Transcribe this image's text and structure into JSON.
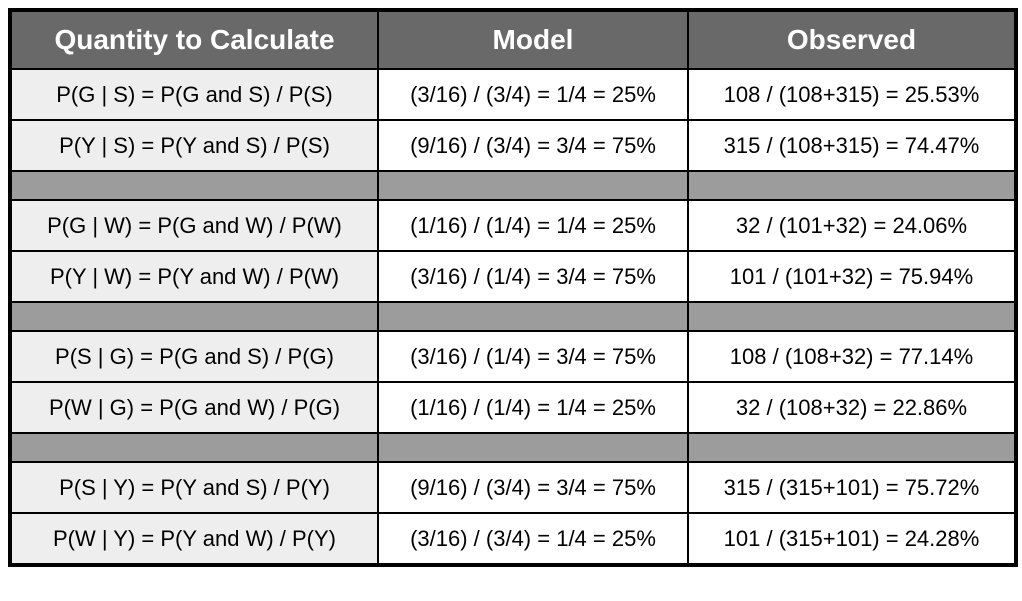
{
  "table": {
    "headers": [
      "Quantity to Calculate",
      "Model",
      "Observed"
    ],
    "colors": {
      "header_bg": "#696969",
      "header_text": "#ffffff",
      "separator_bg": "#9c9c9c",
      "quantity_cell_bg": "#eeeeee",
      "value_cell_bg": "#ffffff",
      "border": "#000000",
      "cell_text": "#000000"
    },
    "sections": [
      {
        "rows": [
          {
            "quantity": "P(G | S) = P(G and S) / P(S)",
            "model": "(3/16) / (3/4) = 1/4 = 25%",
            "observed": "108 / (108+315) = 25.53%"
          },
          {
            "quantity": "P(Y | S) = P(Y and S) / P(S)",
            "model": "(9/16) / (3/4) = 3/4 = 75%",
            "observed": "315 / (108+315) = 74.47%"
          }
        ]
      },
      {
        "rows": [
          {
            "quantity": "P(G | W) = P(G and W) / P(W)",
            "model": "(1/16) / (1/4) = 1/4 = 25%",
            "observed": "32 / (101+32) = 24.06%"
          },
          {
            "quantity": "P(Y | W) = P(Y and W) / P(W)",
            "model": "(3/16) / (1/4) = 3/4 = 75%",
            "observed": "101 / (101+32) = 75.94%"
          }
        ]
      },
      {
        "rows": [
          {
            "quantity": "P(S | G) = P(G and S) / P(G)",
            "model": "(3/16) / (1/4) = 3/4 = 75%",
            "observed": "108 / (108+32) = 77.14%"
          },
          {
            "quantity": "P(W | G) = P(G and W) / P(G)",
            "model": "(1/16) / (1/4) = 1/4 = 25%",
            "observed": "32 / (108+32) = 22.86%"
          }
        ]
      },
      {
        "rows": [
          {
            "quantity": "P(S | Y) = P(Y and S) / P(Y)",
            "model": "(9/16) / (3/4) = 3/4 = 75%",
            "observed": "315 / (315+101) = 75.72%"
          },
          {
            "quantity": "P(W | Y) = P(Y and W) / P(Y)",
            "model": "(3/16) / (3/4) = 1/4 = 25%",
            "observed": "101 / (315+101) = 24.28%"
          }
        ]
      }
    ]
  }
}
